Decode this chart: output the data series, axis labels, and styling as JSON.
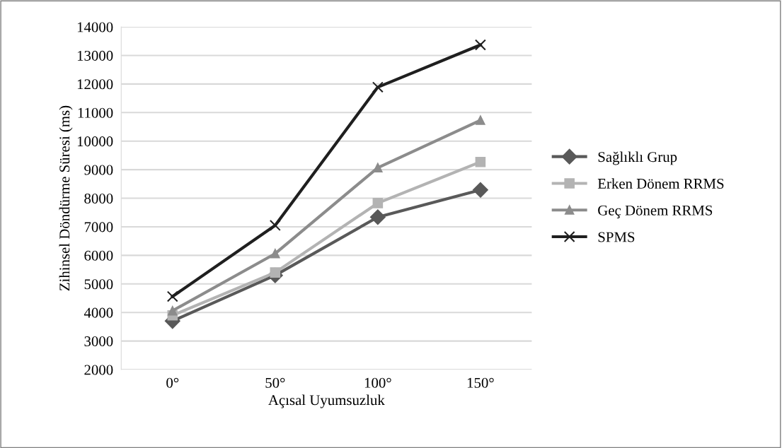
{
  "chart_data": {
    "type": "line",
    "xlabel": "Açısal Uyumsuzluk",
    "ylabel": "Zihinsel Döndürme Süresi (ms)",
    "categories": [
      "0°",
      "50°",
      "100°",
      "150°"
    ],
    "series": [
      {
        "name": "Sağlıklı Grup",
        "color": "#595959",
        "marker": "diamond",
        "values": [
          3700,
          5300,
          7340,
          8290
        ]
      },
      {
        "name": "Erken Dönem RRMS",
        "color": "#b3b3b3",
        "marker": "square",
        "values": [
          3900,
          5400,
          7830,
          9270
        ]
      },
      {
        "name": "Geç Dönem RRMS",
        "color": "#8c8c8c",
        "marker": "triangle",
        "values": [
          4060,
          6060,
          9070,
          10730
        ]
      },
      {
        "name": "SPMS",
        "color": "#1f1f1f",
        "marker": "cross",
        "values": [
          4560,
          7050,
          11890,
          13370
        ]
      }
    ],
    "ylim": [
      2000,
      14000
    ],
    "yticks": [
      2000,
      3000,
      4000,
      5000,
      6000,
      7000,
      8000,
      9000,
      10000,
      11000,
      12000,
      13000,
      14000
    ],
    "grid": "y",
    "legend": "right"
  }
}
